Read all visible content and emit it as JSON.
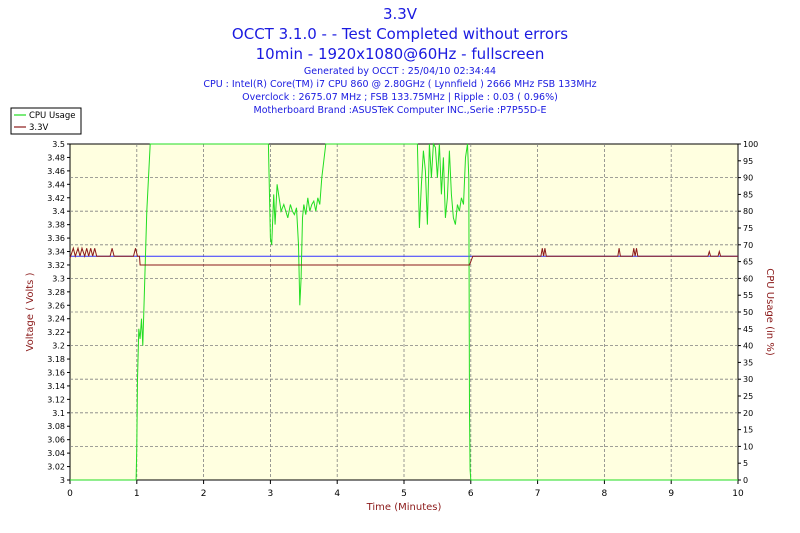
{
  "header": {
    "title": "3.3V",
    "subtitle1": "OCCT 3.1.0 -  - Test Completed without errors",
    "subtitle2": "10min - 1920x1080@60Hz - fullscreen",
    "info1": "Generated by OCCT : 25/04/10 02:34:44",
    "info2": "CPU : Intel(R) Core(TM) i7 CPU 860 @ 2.80GHz ( Lynnfield ) 2666 MHz FSB 133MHz",
    "info3": "Overclock : 2675.07 MHz ; FSB 133.75MHz | Ripple : 0.03 ( 0.96%)",
    "info4": "Motherboard Brand :ASUSTeK Computer INC.,Serie :P7P55D-E"
  },
  "colors": {
    "background": "#ffffff",
    "plot_background": "#ffffe0",
    "grid": "#808080",
    "cpu": "#22dd22",
    "voltage": "#8b1a1a",
    "average": "#3333ff",
    "title": "#1a1ae0",
    "axis_label": "#8b1a1a"
  },
  "chart_data": {
    "type": "line",
    "xlabel": "Time (Minutes)",
    "ylabel_left": "Voltage ( Volts )",
    "ylabel_right": "CPU Usage (in %)",
    "xlim": [
      0,
      10
    ],
    "ylim_left": [
      3.0,
      3.5
    ],
    "ylim_right": [
      0,
      100
    ],
    "grid": true,
    "legend_position": "top-left",
    "x_ticks": [
      "0",
      "1",
      "2",
      "3",
      "4",
      "5",
      "6",
      "7",
      "8",
      "9",
      "10"
    ],
    "y_left_ticks": [
      "3",
      "3.02",
      "3.04",
      "3.06",
      "3.08",
      "3.1",
      "3.12",
      "3.14",
      "3.16",
      "3.18",
      "3.2",
      "3.22",
      "3.24",
      "3.26",
      "3.28",
      "3.3",
      "3.32",
      "3.34",
      "3.36",
      "3.38",
      "3.4",
      "3.42",
      "3.44",
      "3.46",
      "3.48",
      "3.5"
    ],
    "y_right_ticks": [
      "0",
      "5",
      "10",
      "15",
      "20",
      "25",
      "30",
      "35",
      "40",
      "45",
      "50",
      "55",
      "60",
      "65",
      "70",
      "75",
      "80",
      "85",
      "90",
      "95",
      "100"
    ],
    "series": [
      {
        "name": "CPU Usage",
        "axis": "right",
        "x": [
          0,
          0.99,
          1.0,
          1.01,
          1.03,
          1.05,
          1.07,
          1.09,
          1.12,
          1.15,
          1.2,
          2.97,
          3.0,
          3.02,
          3.05,
          3.07,
          3.1,
          3.13,
          3.16,
          3.2,
          3.23,
          3.26,
          3.3,
          3.33,
          3.36,
          3.39,
          3.42,
          3.44,
          3.46,
          3.48,
          3.5,
          3.53,
          3.56,
          3.59,
          3.62,
          3.65,
          3.68,
          3.71,
          3.74,
          3.77,
          3.8,
          3.83,
          3.86,
          3.9,
          4.0,
          5.2,
          5.23,
          5.26,
          5.29,
          5.32,
          5.35,
          5.38,
          5.41,
          5.44,
          5.47,
          5.5,
          5.53,
          5.56,
          5.59,
          5.62,
          5.65,
          5.68,
          5.71,
          5.74,
          5.77,
          5.8,
          5.83,
          5.86,
          5.89,
          5.92,
          5.95,
          5.97,
          5.98,
          5.99,
          6.0,
          6.01,
          6.02,
          10
        ],
        "values": [
          0,
          0,
          10,
          30,
          45,
          42,
          48,
          40,
          60,
          80,
          100,
          100,
          72,
          70,
          85,
          76,
          88,
          84,
          80,
          82,
          80,
          78,
          82,
          80,
          79,
          81,
          70,
          52,
          60,
          78,
          82,
          79,
          84,
          80,
          82,
          83,
          80,
          84,
          82,
          90,
          95,
          100,
          100,
          100,
          100,
          100,
          75,
          88,
          98,
          92,
          76,
          100,
          90,
          100,
          99,
          90,
          100,
          85,
          96,
          78,
          84,
          98,
          85,
          78,
          76,
          82,
          80,
          84,
          82,
          96,
          100,
          90,
          20,
          3,
          0,
          0,
          0,
          0
        ]
      },
      {
        "name": "3.3V",
        "axis": "left",
        "x": [
          0,
          0.05,
          0.08,
          0.12,
          0.15,
          0.18,
          0.22,
          0.25,
          0.28,
          0.31,
          0.34,
          0.37,
          0.4,
          0.43,
          0.6,
          0.63,
          0.66,
          0.69,
          0.95,
          0.98,
          1.01,
          1.04,
          1.05,
          1.12,
          5.98,
          6.03,
          7.05,
          7.07,
          7.09,
          7.11,
          7.13,
          7.15,
          7.17,
          8.2,
          8.22,
          8.24,
          8.26,
          8.28,
          8.42,
          8.44,
          8.46,
          8.48,
          8.5,
          9.55,
          9.57,
          9.59,
          9.7,
          9.72,
          9.74,
          10
        ],
        "values": [
          3.33,
          3.345,
          3.333,
          3.345,
          3.333,
          3.345,
          3.333,
          3.345,
          3.333,
          3.345,
          3.333,
          3.345,
          3.333,
          3.333,
          3.333,
          3.345,
          3.333,
          3.333,
          3.333,
          3.345,
          3.333,
          3.333,
          3.32,
          3.32,
          3.32,
          3.333,
          3.333,
          3.345,
          3.333,
          3.345,
          3.333,
          3.333,
          3.333,
          3.333,
          3.345,
          3.333,
          3.333,
          3.333,
          3.333,
          3.345,
          3.333,
          3.345,
          3.333,
          3.333,
          3.34,
          3.333,
          3.333,
          3.34,
          3.333,
          3.333
        ]
      }
    ],
    "reference_line": {
      "value": 3.333
    }
  }
}
